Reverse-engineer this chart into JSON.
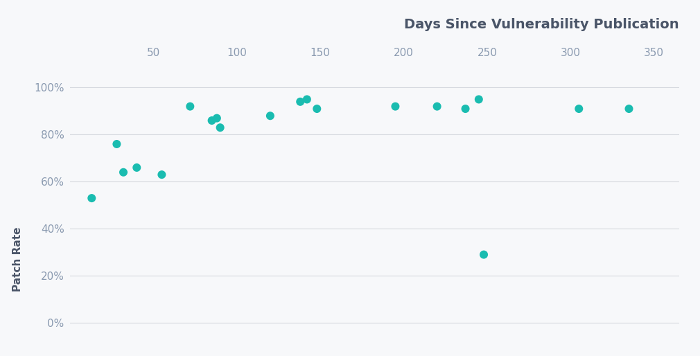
{
  "x_values": [
    13,
    28,
    32,
    40,
    55,
    72,
    85,
    88,
    90,
    120,
    138,
    142,
    148,
    195,
    220,
    237,
    245,
    248,
    305,
    335
  ],
  "y_values": [
    0.53,
    0.76,
    0.64,
    0.66,
    0.63,
    0.92,
    0.86,
    0.87,
    0.83,
    0.88,
    0.94,
    0.95,
    0.91,
    0.92,
    0.92,
    0.91,
    0.95,
    0.29,
    0.91,
    0.91
  ],
  "dot_color": "#1ABCB0",
  "bg_color": "#f7f8fa",
  "grid_color": "#d5d8de",
  "text_color": "#8a9ab0",
  "title_color": "#4a5568",
  "xlabel": "Days Since Vulnerability Publication",
  "ylabel": "Patch Rate",
  "x_ticks": [
    50,
    100,
    150,
    200,
    250,
    300,
    350
  ],
  "y_ticks": [
    0.0,
    0.2,
    0.4,
    0.6,
    0.8,
    1.0
  ],
  "y_tick_labels": [
    "0%",
    "20%",
    "40%",
    "60%",
    "80%",
    "100%"
  ],
  "xlim": [
    0,
    365
  ],
  "ylim": [
    -0.02,
    1.1
  ],
  "dot_size": 75,
  "title_fontsize": 14,
  "label_fontsize": 11,
  "tick_fontsize": 11
}
